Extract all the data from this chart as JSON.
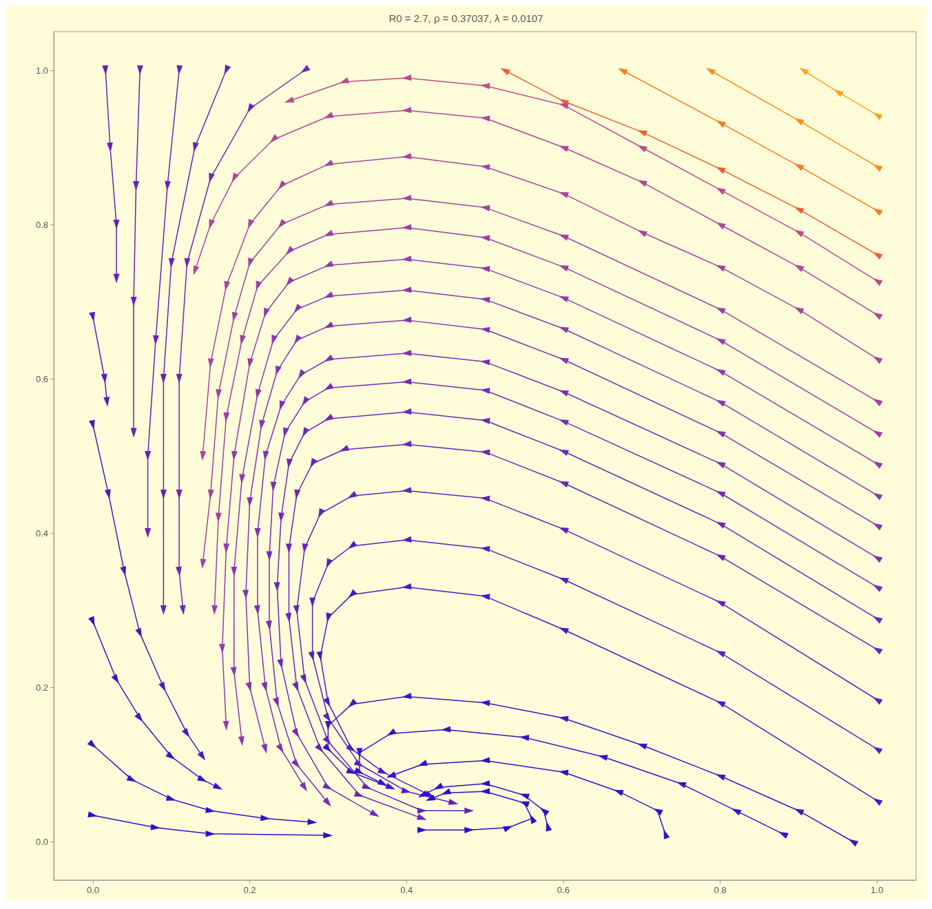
{
  "chart_data": {
    "type": "line",
    "title": "R0 = 2.7, ρ = 0.37037, λ = 0.0107",
    "xlim": [
      -0.05,
      1.05
    ],
    "ylim": [
      -0.05,
      1.05
    ],
    "xticks": [
      {
        "value": 0,
        "label": "0.0"
      },
      {
        "value": 0.2,
        "label": "0.2"
      },
      {
        "value": 0.4,
        "label": "0.4"
      },
      {
        "value": 0.6,
        "label": "0.6"
      },
      {
        "value": 0.8,
        "label": "0.8"
      },
      {
        "value": 1,
        "label": "1.0"
      }
    ],
    "yticks": [
      {
        "value": 0,
        "label": "0.0"
      },
      {
        "value": 0.2,
        "label": "0.2"
      },
      {
        "value": 0.4,
        "label": "0.4"
      },
      {
        "value": 0.6,
        "label": "0.6"
      },
      {
        "value": 0.8,
        "label": "0.8"
      },
      {
        "value": 1,
        "label": "1.0"
      }
    ],
    "marker": "triangle",
    "line_style": "solid",
    "series": [
      {
        "color": "#ffa41b",
        "x": [
          1,
          0.95,
          0.906
        ],
        "values": [
          0.942,
          0.972,
          1.0
        ]
      },
      {
        "color": "#ff8f1f",
        "x": [
          1,
          0.9,
          0.787
        ],
        "values": [
          0.875,
          0.935,
          1.0
        ]
      },
      {
        "color": "#ff7a22",
        "x": [
          1,
          0.9,
          0.8,
          0.675
        ],
        "values": [
          0.818,
          0.876,
          0.932,
          1.0
        ]
      },
      {
        "color": "#ee5f30",
        "x": [
          1,
          0.9,
          0.8,
          0.7,
          0.6,
          0.525
        ],
        "values": [
          0.761,
          0.82,
          0.872,
          0.92,
          0.96,
          1.0
        ]
      },
      {
        "color": "#c04a8e",
        "x": [
          1,
          0.9,
          0.8,
          0.7,
          0.6,
          0.5,
          0.4,
          0.32,
          0.25
        ],
        "values": [
          0.727,
          0.79,
          0.845,
          0.9,
          0.955,
          0.98,
          0.99,
          0.985,
          0.96
        ]
      },
      {
        "color": "#b0479a",
        "x": [
          1,
          0.9,
          0.8,
          0.7,
          0.6,
          0.5,
          0.4,
          0.3,
          0.23,
          0.18,
          0.15,
          0.13
        ],
        "values": [
          0.683,
          0.745,
          0.8,
          0.855,
          0.9,
          0.938,
          0.948,
          0.94,
          0.91,
          0.86,
          0.8,
          0.74
        ]
      },
      {
        "color": "#a844a0",
        "x": [
          1,
          0.9,
          0.8,
          0.7,
          0.6,
          0.5,
          0.4,
          0.3,
          0.24,
          0.2,
          0.17,
          0.15,
          0.14
        ],
        "values": [
          0.626,
          0.69,
          0.745,
          0.79,
          0.84,
          0.875,
          0.888,
          0.878,
          0.85,
          0.8,
          0.72,
          0.62,
          0.5
        ]
      },
      {
        "color": "#a042a4",
        "x": [
          1,
          0.8,
          0.6,
          0.5,
          0.4,
          0.3,
          0.24,
          0.2,
          0.18,
          0.16,
          0.15,
          0.14
        ],
        "values": [
          0.571,
          0.69,
          0.785,
          0.822,
          0.834,
          0.826,
          0.8,
          0.75,
          0.68,
          0.58,
          0.45,
          0.36
        ]
      },
      {
        "color": "#9a40a8",
        "x": [
          1,
          0.8,
          0.6,
          0.5,
          0.4,
          0.3,
          0.25,
          0.21,
          0.19,
          0.17,
          0.16,
          0.155
        ],
        "values": [
          0.53,
          0.65,
          0.745,
          0.783,
          0.796,
          0.787,
          0.765,
          0.72,
          0.65,
          0.55,
          0.42,
          0.3
        ]
      },
      {
        "color": "#923cac",
        "x": [
          1,
          0.8,
          0.6,
          0.5,
          0.4,
          0.3,
          0.25,
          0.22,
          0.2,
          0.18,
          0.17,
          0.165,
          0.17
        ],
        "values": [
          0.49,
          0.61,
          0.705,
          0.743,
          0.755,
          0.747,
          0.725,
          0.685,
          0.62,
          0.5,
          0.38,
          0.25,
          0.15
        ]
      },
      {
        "color": "#8a38b0",
        "x": [
          1,
          0.8,
          0.6,
          0.5,
          0.4,
          0.3,
          0.26,
          0.23,
          0.21,
          0.19,
          0.18,
          0.18,
          0.19
        ],
        "values": [
          0.449,
          0.57,
          0.665,
          0.703,
          0.715,
          0.707,
          0.69,
          0.65,
          0.58,
          0.47,
          0.35,
          0.22,
          0.13
        ]
      },
      {
        "color": "#8434b2",
        "x": [
          1,
          0.8,
          0.6,
          0.5,
          0.4,
          0.3,
          0.26,
          0.235,
          0.215,
          0.2,
          0.195,
          0.2,
          0.22
        ],
        "values": [
          0.41,
          0.53,
          0.625,
          0.664,
          0.676,
          0.668,
          0.65,
          0.61,
          0.54,
          0.44,
          0.32,
          0.2,
          0.12
        ]
      },
      {
        "color": "#7e30b4",
        "x": [
          1,
          0.8,
          0.6,
          0.5,
          0.4,
          0.3,
          0.265,
          0.24,
          0.22,
          0.21,
          0.21,
          0.22,
          0.24,
          0.27
        ],
        "values": [
          0.368,
          0.49,
          0.583,
          0.622,
          0.633,
          0.625,
          0.605,
          0.565,
          0.5,
          0.4,
          0.3,
          0.2,
          0.12,
          0.07
        ]
      },
      {
        "color": "#782cb6",
        "x": [
          1,
          0.8,
          0.6,
          0.5,
          0.4,
          0.3,
          0.27,
          0.245,
          0.23,
          0.225,
          0.225,
          0.235,
          0.26,
          0.3
        ],
        "values": [
          0.33,
          0.452,
          0.545,
          0.585,
          0.596,
          0.588,
          0.57,
          0.53,
          0.46,
          0.37,
          0.28,
          0.18,
          0.1,
          0.05
        ]
      },
      {
        "color": "#7028b8",
        "x": [
          1,
          0.8,
          0.6,
          0.5,
          0.4,
          0.3,
          0.27,
          0.25,
          0.24,
          0.235,
          0.24,
          0.26,
          0.3,
          0.36
        ],
        "values": [
          0.289,
          0.412,
          0.506,
          0.546,
          0.557,
          0.548,
          0.53,
          0.49,
          0.42,
          0.33,
          0.23,
          0.14,
          0.07,
          0.035
        ]
      },
      {
        "color": "#6a24ba",
        "x": [
          1,
          0.8,
          0.6,
          0.5,
          0.4,
          0.32,
          0.28,
          0.26,
          0.25,
          0.25,
          0.26,
          0.29,
          0.34,
          0.42
        ],
        "values": [
          0.249,
          0.37,
          0.465,
          0.505,
          0.515,
          0.508,
          0.49,
          0.45,
          0.38,
          0.29,
          0.2,
          0.12,
          0.06,
          0.03
        ]
      },
      {
        "color": "#6222bc",
        "x": [
          1,
          0.8,
          0.6,
          0.5,
          0.4,
          0.33,
          0.29,
          0.27,
          0.26,
          0.27,
          0.3,
          0.35,
          0.42,
          0.48
        ],
        "values": [
          0.184,
          0.31,
          0.405,
          0.445,
          0.455,
          0.448,
          0.425,
          0.38,
          0.3,
          0.21,
          0.13,
          0.07,
          0.04,
          0.04
        ]
      },
      {
        "color": "#5a1ec0",
        "x": [
          1,
          0.8,
          0.6,
          0.5,
          0.4,
          0.33,
          0.3,
          0.28,
          0.28,
          0.3,
          0.34,
          0.4,
          0.46
        ],
        "values": [
          0.12,
          0.245,
          0.34,
          0.38,
          0.391,
          0.383,
          0.36,
          0.31,
          0.24,
          0.16,
          0.1,
          0.065,
          0.05
        ]
      },
      {
        "color": "#4c1ac2",
        "x": [
          1,
          0.8,
          0.6,
          0.5,
          0.4,
          0.33,
          0.3,
          0.29,
          0.3,
          0.33,
          0.37,
          0.43
        ],
        "values": [
          0.053,
          0.18,
          0.275,
          0.318,
          0.33,
          0.32,
          0.29,
          0.24,
          0.18,
          0.12,
          0.09,
          0.06
        ]
      },
      {
        "color": "#3a16c6",
        "x": [
          0.969,
          0.9,
          0.8,
          0.7,
          0.6,
          0.5,
          0.4,
          0.33,
          0.3,
          0.3,
          0.33,
          0.38
        ],
        "values": [
          0.0,
          0.04,
          0.085,
          0.125,
          0.16,
          0.18,
          0.188,
          0.178,
          0.15,
          0.12,
          0.09,
          0.07
        ]
      },
      {
        "color": "#3414c8",
        "x": [
          0.88,
          0.82,
          0.75,
          0.65,
          0.55,
          0.45,
          0.38,
          0.34,
          0.34,
          0.37
        ],
        "values": [
          0.01,
          0.04,
          0.075,
          0.11,
          0.135,
          0.145,
          0.14,
          0.115,
          0.09,
          0.075
        ]
      },
      {
        "color": "#3012c8",
        "x": [
          0.73,
          0.72,
          0.67,
          0.6,
          0.5,
          0.42,
          0.38
        ],
        "values": [
          0.01,
          0.04,
          0.065,
          0.09,
          0.105,
          0.1,
          0.085
        ]
      },
      {
        "color": "#2c12ca",
        "x": [
          0.58,
          0.575,
          0.55,
          0.5,
          0.44,
          0.42
        ],
        "values": [
          0.02,
          0.04,
          0.06,
          0.075,
          0.07,
          0.06
        ]
      },
      {
        "color": "#2810cc",
        "x": [
          0.42,
          0.48,
          0.53,
          0.56,
          0.55,
          0.5,
          0.45,
          0.43
        ],
        "values": [
          0.015,
          0.015,
          0.018,
          0.03,
          0.05,
          0.065,
          0.063,
          0.055
        ]
      },
      {
        "color": "#6a20b8",
        "x": [
          0.016,
          0.022,
          0.03,
          0.03
        ],
        "values": [
          1.0,
          0.9,
          0.8,
          0.73
        ]
      },
      {
        "color": "#6a20b8",
        "x": [
          0.06,
          0.055,
          0.052,
          0.052
        ],
        "values": [
          1.0,
          0.85,
          0.7,
          0.53
        ]
      },
      {
        "color": "#6a20b8",
        "x": [
          0.11,
          0.095,
          0.08,
          0.07,
          0.07
        ],
        "values": [
          1.0,
          0.85,
          0.65,
          0.5,
          0.4
        ]
      },
      {
        "color": "#6a20b8",
        "x": [
          0.17,
          0.13,
          0.1,
          0.09,
          0.09,
          0.09
        ],
        "values": [
          1.0,
          0.9,
          0.75,
          0.6,
          0.45,
          0.3
        ]
      },
      {
        "color": "#7026b6",
        "x": [
          0.27,
          0.2,
          0.15,
          0.12,
          0.11,
          0.11,
          0.11,
          0.115
        ],
        "values": [
          1.0,
          0.95,
          0.86,
          0.75,
          0.6,
          0.45,
          0.35,
          0.3
        ]
      },
      {
        "color": "#5a1cbc",
        "x": [
          0,
          0.015,
          0.018
        ],
        "values": [
          0.68,
          0.6,
          0.57
        ]
      },
      {
        "color": "#4a18c0",
        "x": [
          0,
          0.02,
          0.04,
          0.06,
          0.09,
          0.12,
          0.14
        ],
        "values": [
          0.54,
          0.45,
          0.35,
          0.27,
          0.2,
          0.14,
          0.11
        ]
      },
      {
        "color": "#3a14c4",
        "x": [
          0,
          0.03,
          0.06,
          0.1,
          0.14,
          0.16
        ],
        "values": [
          0.285,
          0.21,
          0.16,
          0.11,
          0.08,
          0.07
        ]
      },
      {
        "color": "#3012c8",
        "x": [
          0,
          0.05,
          0.1,
          0.15,
          0.22,
          0.28
        ],
        "values": [
          0.125,
          0.08,
          0.055,
          0.04,
          0.03,
          0.025
        ]
      },
      {
        "color": "#2a10ca",
        "x": [
          0,
          0.08,
          0.15,
          0.3
        ],
        "values": [
          0.034,
          0.018,
          0.01,
          0.008
        ]
      }
    ]
  }
}
